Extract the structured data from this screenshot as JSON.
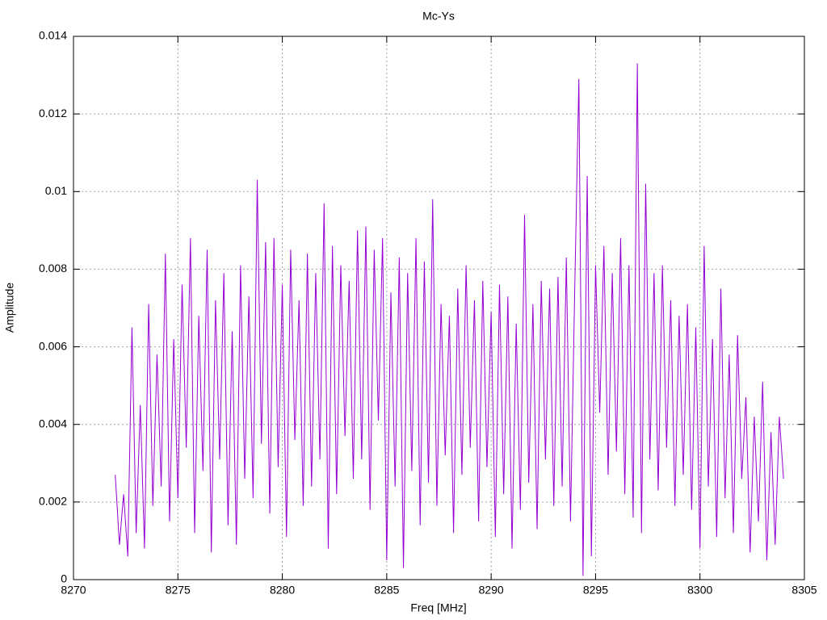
{
  "chart_data": {
    "type": "line",
    "title": "Mc-Ys",
    "xlabel": "Freq [MHz]",
    "ylabel": "Amplitude",
    "x": [
      8272,
      8272.2,
      8272.4,
      8272.6,
      8272.8,
      8273,
      8273.2,
      8273.4,
      8273.6,
      8273.8,
      8274,
      8274.2,
      8274.4,
      8274.6,
      8274.8,
      8275,
      8275.2,
      8275.4,
      8275.6,
      8275.8,
      8276,
      8276.2,
      8276.4,
      8276.6,
      8276.8,
      8277,
      8277.2,
      8277.4,
      8277.6,
      8277.8,
      8278,
      8278.2,
      8278.4,
      8278.6,
      8278.8,
      8279,
      8279.2,
      8279.4,
      8279.6,
      8279.8,
      8280,
      8280.2,
      8280.4,
      8280.6,
      8280.8,
      8281,
      8281.2,
      8281.4,
      8281.6,
      8281.8,
      8282,
      8282.2,
      8282.4,
      8282.6,
      8282.8,
      8283,
      8283.2,
      8283.4,
      8283.6,
      8283.8,
      8284,
      8284.2,
      8284.4,
      8284.6,
      8284.8,
      8285,
      8285.2,
      8285.4,
      8285.6,
      8285.8,
      8286,
      8286.2,
      8286.4,
      8286.6,
      8286.8,
      8287,
      8287.2,
      8287.4,
      8287.6,
      8287.8,
      8288,
      8288.2,
      8288.4,
      8288.6,
      8288.8,
      8289,
      8289.2,
      8289.4,
      8289.6,
      8289.8,
      8290,
      8290.2,
      8290.4,
      8290.6,
      8290.8,
      8291,
      8291.2,
      8291.4,
      8291.6,
      8291.8,
      8292,
      8292.2,
      8292.4,
      8292.6,
      8292.8,
      8293,
      8293.2,
      8293.4,
      8293.6,
      8293.8,
      8294,
      8294.2,
      8294.4,
      8294.6,
      8294.8,
      8295,
      8295.2,
      8295.4,
      8295.6,
      8295.8,
      8296,
      8296.2,
      8296.4,
      8296.6,
      8296.8,
      8297,
      8297.2,
      8297.4,
      8297.6,
      8297.8,
      8298,
      8298.2,
      8298.4,
      8298.6,
      8298.8,
      8299,
      8299.2,
      8299.4,
      8299.6,
      8299.8,
      8300,
      8300.2,
      8300.4,
      8300.6,
      8300.8,
      8301,
      8301.2,
      8301.4,
      8301.6,
      8301.8,
      8302,
      8302.2,
      8302.4,
      8302.6,
      8302.8,
      8303,
      8303.2,
      8303.4,
      8303.6,
      8303.8,
      8304
    ],
    "values": [
      0.0027,
      0.0009,
      0.0022,
      0.0006,
      0.0065,
      0.0012,
      0.0045,
      0.0008,
      0.0071,
      0.0019,
      0.0058,
      0.0024,
      0.0084,
      0.0015,
      0.0062,
      0.0021,
      0.0076,
      0.0034,
      0.0088,
      0.0012,
      0.0068,
      0.0028,
      0.0085,
      0.0007,
      0.0072,
      0.0031,
      0.0079,
      0.0014,
      0.0064,
      0.0009,
      0.0081,
      0.0026,
      0.0073,
      0.0021,
      0.0103,
      0.0035,
      0.0087,
      0.0017,
      0.0088,
      0.0029,
      0.0076,
      0.0011,
      0.0085,
      0.0036,
      0.0072,
      0.0019,
      0.0084,
      0.0024,
      0.0079,
      0.0031,
      0.0097,
      0.0008,
      0.0086,
      0.0022,
      0.0081,
      0.0037,
      0.0077,
      0.0026,
      0.009,
      0.0031,
      0.0091,
      0.0018,
      0.0085,
      0.0041,
      0.0088,
      0.0005,
      0.0074,
      0.0024,
      0.0083,
      0.0003,
      0.0079,
      0.0028,
      0.0088,
      0.0014,
      0.0082,
      0.0025,
      0.0098,
      0.0019,
      0.0071,
      0.0032,
      0.0068,
      0.0012,
      0.0075,
      0.0027,
      0.0081,
      0.0034,
      0.0072,
      0.0015,
      0.0077,
      0.0029,
      0.0069,
      0.0011,
      0.0076,
      0.0022,
      0.0073,
      0.0008,
      0.0066,
      0.0018,
      0.0094,
      0.0025,
      0.0071,
      0.0013,
      0.0077,
      0.0031,
      0.0075,
      0.0019,
      0.0078,
      0.0024,
      0.0083,
      0.0015,
      0.0074,
      0.0129,
      0.0001,
      0.0104,
      0.0006,
      0.0081,
      0.0043,
      0.0086,
      0.0027,
      0.0079,
      0.0033,
      0.0088,
      0.0022,
      0.0081,
      0.0016,
      0.0133,
      0.0012,
      0.0102,
      0.0031,
      0.0079,
      0.0023,
      0.0081,
      0.0034,
      0.0072,
      0.0019,
      0.0068,
      0.0027,
      0.0071,
      0.0018,
      0.0065,
      0.0008,
      0.0086,
      0.0024,
      0.0062,
      0.0011,
      0.0075,
      0.0021,
      0.0058,
      0.0012,
      0.0063,
      0.0026,
      0.0047,
      0.0007,
      0.0042,
      0.0015,
      0.0051,
      0.0005,
      0.0038,
      0.0009,
      0.0042,
      0.0026
    ],
    "color": "#9400d3",
    "xlim": [
      8270,
      8305
    ],
    "xticks": [
      8270,
      8275,
      8280,
      8285,
      8290,
      8295,
      8300,
      8305
    ],
    "ylim": [
      0,
      0.014
    ],
    "yticks": [
      0,
      0.002,
      0.004,
      0.006,
      0.008,
      0.01,
      0.012,
      0.014
    ],
    "grid": true
  }
}
